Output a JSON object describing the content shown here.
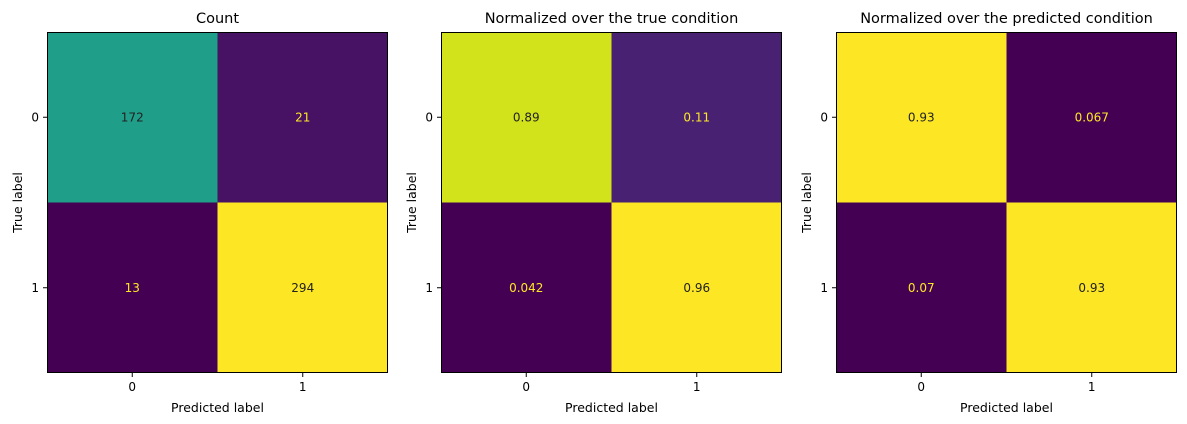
{
  "chart_data": [
    {
      "type": "heatmap",
      "title": "Count",
      "xlabel": "Predicted label",
      "ylabel": "True label",
      "x_ticks": [
        "0",
        "1"
      ],
      "y_ticks": [
        "0",
        "1"
      ],
      "cells": [
        {
          "row": 0,
          "col": 0,
          "label": "172",
          "color": "#1f9e89",
          "text_color": "#222222"
        },
        {
          "row": 0,
          "col": 1,
          "label": "21",
          "color": "#471164",
          "text_color": "#fde725"
        },
        {
          "row": 1,
          "col": 0,
          "label": "13",
          "color": "#440154",
          "text_color": "#fde725"
        },
        {
          "row": 1,
          "col": 1,
          "label": "294",
          "color": "#fde725",
          "text_color": "#222222"
        }
      ]
    },
    {
      "type": "heatmap",
      "title": "Normalized over the true condition",
      "xlabel": "Predicted label",
      "ylabel": "True label",
      "x_ticks": [
        "0",
        "1"
      ],
      "y_ticks": [
        "0",
        "1"
      ],
      "cells": [
        {
          "row": 0,
          "col": 0,
          "label": "0.89",
          "color": "#d2e21b",
          "text_color": "#222222"
        },
        {
          "row": 0,
          "col": 1,
          "label": "0.11",
          "color": "#482173",
          "text_color": "#fde725"
        },
        {
          "row": 1,
          "col": 0,
          "label": "0.042",
          "color": "#440154",
          "text_color": "#fde725"
        },
        {
          "row": 1,
          "col": 1,
          "label": "0.96",
          "color": "#fde725",
          "text_color": "#222222"
        }
      ]
    },
    {
      "type": "heatmap",
      "title": "Normalized over the predicted condition",
      "xlabel": "Predicted label",
      "ylabel": "True label",
      "x_ticks": [
        "0",
        "1"
      ],
      "y_ticks": [
        "0",
        "1"
      ],
      "cells": [
        {
          "row": 0,
          "col": 0,
          "label": "0.93",
          "color": "#fde725",
          "text_color": "#222222"
        },
        {
          "row": 0,
          "col": 1,
          "label": "0.067",
          "color": "#440154",
          "text_color": "#fde725"
        },
        {
          "row": 1,
          "col": 0,
          "label": "0.07",
          "color": "#440154",
          "text_color": "#fde725"
        },
        {
          "row": 1,
          "col": 1,
          "label": "0.93",
          "color": "#fde725",
          "text_color": "#222222"
        }
      ]
    }
  ]
}
